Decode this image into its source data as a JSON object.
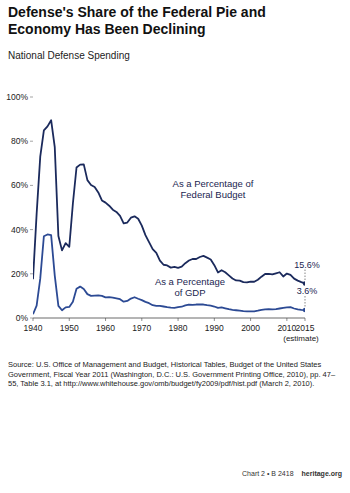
{
  "chart_data": {
    "type": "line",
    "title": "Defense's Share of the Federal Pie and Economy Has Been Declining",
    "subtitle": "National Defense Spending",
    "annotations": [
      "As a Percentage of Federal Budget",
      "As a Percentage of GDP",
      "15.6%",
      "3.6%",
      "(estimate)"
    ],
    "source": "Source: U.S. Office of Management and Budget, Historical Tables, Budget of the United States Government, Fiscal Year 2011 (Washington, D.C.: U.S. Government Printing Office, 2010), pp. 47–55, Table 3.1, at http://www.whitehouse.gov/omb/budget/fy2009/pdf/hist.pdf (March 2, 2010).",
    "footer": [
      "Chart 2 • B 2418",
      "heritage.org"
    ],
    "x": [
      1940,
      1941,
      1942,
      1943,
      1944,
      1945,
      1946,
      1947,
      1948,
      1949,
      1950,
      1951,
      1952,
      1953,
      1954,
      1955,
      1956,
      1957,
      1958,
      1959,
      1960,
      1961,
      1962,
      1963,
      1964,
      1965,
      1966,
      1967,
      1968,
      1969,
      1970,
      1971,
      1972,
      1973,
      1974,
      1975,
      1976,
      1977,
      1978,
      1979,
      1980,
      1981,
      1982,
      1983,
      1984,
      1985,
      1986,
      1987,
      1988,
      1989,
      1990,
      1991,
      1992,
      1993,
      1994,
      1995,
      1996,
      1997,
      1998,
      1999,
      2000,
      2001,
      2002,
      2003,
      2004,
      2005,
      2006,
      2007,
      2008,
      2009,
      2010,
      2011,
      2012,
      2013,
      2014,
      2015
    ],
    "series": [
      {
        "name": "As a Percentage of Federal Budget",
        "color": "#1b2a5c",
        "values": [
          17.5,
          47.1,
          73.0,
          84.9,
          86.7,
          89.5,
          77.3,
          37.1,
          30.6,
          33.9,
          32.2,
          51.8,
          68.1,
          69.4,
          69.5,
          62.4,
          60.2,
          59.3,
          56.8,
          53.2,
          52.2,
          50.8,
          49.0,
          48.0,
          46.2,
          42.8,
          43.2,
          45.4,
          46.0,
          44.9,
          41.8,
          37.5,
          34.3,
          31.2,
          29.5,
          26.0,
          24.1,
          23.8,
          22.8,
          23.1,
          22.7,
          23.2,
          24.8,
          26.0,
          26.7,
          26.7,
          27.6,
          28.1,
          27.3,
          26.5,
          23.9,
          20.6,
          21.6,
          20.7,
          19.3,
          17.9,
          17.0,
          16.9,
          16.2,
          16.1,
          16.5,
          16.4,
          17.3,
          18.7,
          19.9,
          20.0,
          19.7,
          20.2,
          20.7,
          18.8,
          20.1,
          19.5,
          17.8,
          16.9,
          16.2,
          15.6
        ]
      },
      {
        "name": "As a Percentage of GDP",
        "color": "#2c4a94",
        "values": [
          1.7,
          5.6,
          17.8,
          37.0,
          37.8,
          37.5,
          19.2,
          5.5,
          3.5,
          4.8,
          5.0,
          7.4,
          13.2,
          14.2,
          13.1,
          10.8,
          10.0,
          10.1,
          10.2,
          10.0,
          9.3,
          9.4,
          9.2,
          8.9,
          8.5,
          7.4,
          7.7,
          8.8,
          9.4,
          8.7,
          8.1,
          7.3,
          6.7,
          5.8,
          5.5,
          5.5,
          5.2,
          4.9,
          4.7,
          4.6,
          4.9,
          5.1,
          5.7,
          6.1,
          5.9,
          6.1,
          6.2,
          6.1,
          5.8,
          5.6,
          5.2,
          4.6,
          4.8,
          4.4,
          4.0,
          3.7,
          3.5,
          3.3,
          3.1,
          3.0,
          3.0,
          3.0,
          3.3,
          3.7,
          3.9,
          4.0,
          3.9,
          4.0,
          4.3,
          4.6,
          4.8,
          4.9,
          4.3,
          3.9,
          3.7,
          3.6
        ]
      }
    ],
    "xlim": [
      1940,
      2015
    ],
    "xticks": [
      1940,
      1950,
      1960,
      1970,
      1980,
      1990,
      2000,
      2010,
      2015
    ],
    "ylim": [
      0,
      100
    ],
    "yticks": [
      {
        "value": 0,
        "label": "0%"
      },
      {
        "value": 20,
        "label": "20%"
      },
      {
        "value": 40,
        "label": "40%"
      },
      {
        "value": 60,
        "label": "60%"
      },
      {
        "value": 80,
        "label": "80%"
      },
      {
        "value": 100,
        "label": "100%"
      }
    ],
    "grid": false,
    "marker": "circle"
  }
}
